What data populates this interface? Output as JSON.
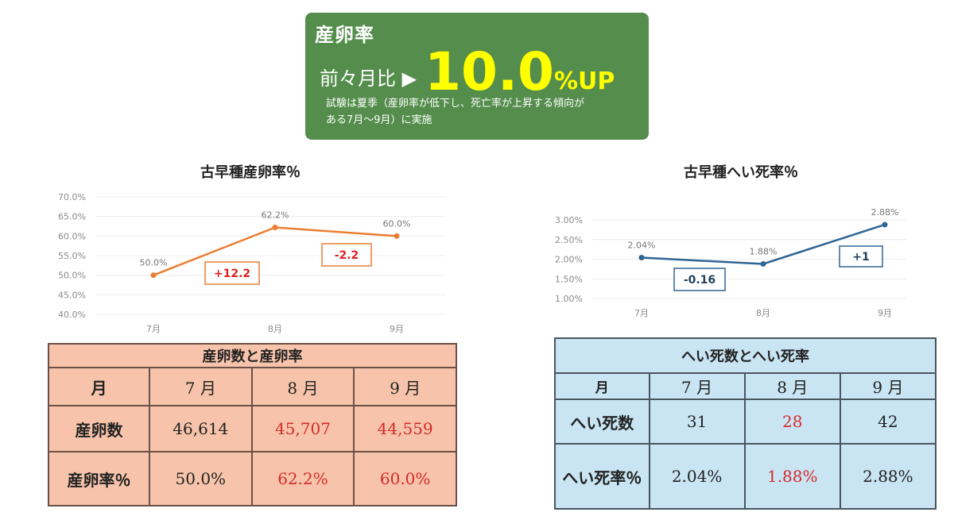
{
  "banner": {
    "title": "産卵率",
    "prefix": "前々月比 ▶",
    "value": "10.0",
    "unit": "%UP",
    "note_line1": "試験は夏季（産卵率が低下し、死亡率が上昇する傾向が",
    "note_line2": "ある7月～9月）に実施",
    "colors": {
      "background": "#548d4c",
      "highlight": "#ffff00"
    }
  },
  "chart_data": [
    {
      "type": "line",
      "title": "古早種産卵率％",
      "x": [
        "7月",
        "8月",
        "9月"
      ],
      "values": [
        50.0,
        62.2,
        60.0
      ],
      "value_labels": [
        "50.0%",
        "62.2%",
        "60.0%"
      ],
      "ylim": [
        40,
        70
      ],
      "yticks": [
        "70.0%",
        "65.0%",
        "60.0%",
        "55.0%",
        "50.0%",
        "45.0%",
        "40.0%"
      ],
      "color": "#ed7d31",
      "grid": true,
      "annotations": [
        "+12.2",
        "-2.2"
      ],
      "annotation_color": "#e02020"
    },
    {
      "type": "line",
      "title": "古早種へい死率％",
      "x": [
        "7月",
        "8月",
        "9月"
      ],
      "values": [
        2.04,
        1.88,
        2.88
      ],
      "value_labels": [
        "2.04%",
        "1.88%",
        "2.88%"
      ],
      "ylim": [
        1.0,
        3.0
      ],
      "yticks": [
        "3.00%",
        "2.50%",
        "2.00%",
        "1.50%",
        "1.00%"
      ],
      "color": "#2e6593",
      "grid": true,
      "annotations": [
        "-0.16",
        "+1"
      ],
      "annotation_color": "#1f3f5e"
    }
  ],
  "egg_table": {
    "title": "産卵数と産卵率",
    "header": [
      "月",
      "7 月",
      "8 月",
      "9 月"
    ],
    "rows": [
      {
        "label": "産卵数",
        "cells": [
          "46,614",
          "45,707",
          "44,559"
        ]
      },
      {
        "label": "産卵率％",
        "cells": [
          "50.0%",
          "62.2%",
          "60.0%"
        ]
      }
    ],
    "colors": {
      "background": "#f7c4ab",
      "highlight": "#d52a2a"
    }
  },
  "mortality_table": {
    "title": "へい死数とへい死率",
    "header": [
      "月",
      "7 月",
      "8 月",
      "9 月"
    ],
    "rows": [
      {
        "label": "へい死数",
        "cells": [
          "31",
          "28",
          "42"
        ]
      },
      {
        "label": "へい死率％",
        "cells": [
          "2.04%",
          "1.88%",
          "2.88%"
        ]
      }
    ],
    "colors": {
      "background": "#c9e4f3",
      "highlight": "#d52a2a"
    }
  }
}
